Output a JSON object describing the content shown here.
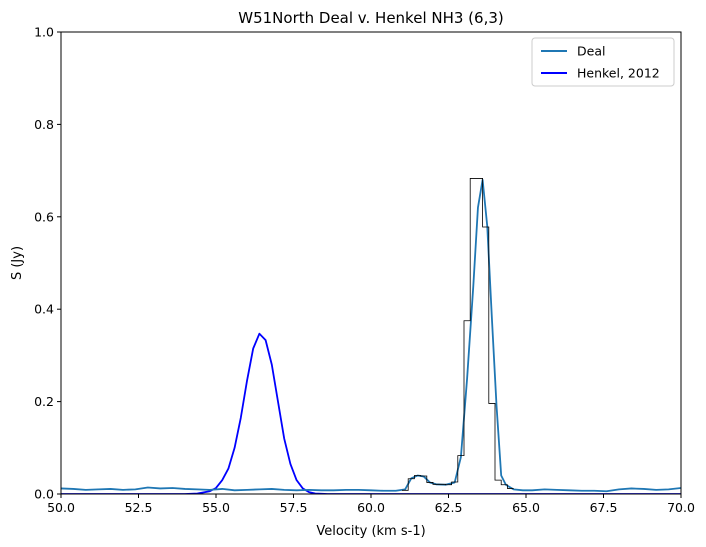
{
  "chart_data": {
    "type": "line",
    "title": "W51North Deal v. Henkel NH3 (6,3)",
    "xlabel": "Velocity (km s-1)",
    "ylabel": "S (Jy)",
    "xlim": [
      50,
      70
    ],
    "ylim": [
      0,
      1
    ],
    "xticks": [
      "50.0",
      "52.5",
      "55.0",
      "57.5",
      "60.0",
      "62.5",
      "65.0",
      "67.5",
      "70.0"
    ],
    "yticks": [
      "0.0",
      "0.2",
      "0.4",
      "0.6",
      "0.8",
      "1.0"
    ],
    "grid": false,
    "legend_position": "top-right",
    "series": [
      {
        "name": "Deal",
        "color": "#1f77b4",
        "style": "line with thin black step outline",
        "x": [
          50.0,
          50.4,
          50.8,
          51.2,
          51.6,
          52.0,
          52.4,
          52.8,
          53.2,
          53.6,
          54.0,
          54.4,
          54.8,
          55.2,
          55.6,
          56.0,
          56.4,
          56.8,
          57.2,
          57.6,
          58.0,
          58.4,
          58.8,
          59.2,
          59.6,
          60.0,
          60.4,
          60.8,
          61.1,
          61.3,
          61.5,
          61.7,
          61.9,
          62.1,
          62.4,
          62.7,
          62.9,
          63.1,
          63.3,
          63.45,
          63.6,
          63.75,
          63.9,
          64.05,
          64.2,
          64.35,
          64.6,
          64.9,
          65.2,
          65.6,
          66.0,
          66.4,
          66.8,
          67.2,
          67.6,
          68.0,
          68.4,
          68.8,
          69.2,
          69.6,
          70.0
        ],
        "y": [
          0.012,
          0.011,
          0.009,
          0.01,
          0.011,
          0.009,
          0.01,
          0.014,
          0.012,
          0.013,
          0.011,
          0.01,
          0.009,
          0.011,
          0.008,
          0.009,
          0.01,
          0.011,
          0.009,
          0.008,
          0.009,
          0.008,
          0.008,
          0.009,
          0.009,
          0.008,
          0.007,
          0.007,
          0.01,
          0.034,
          0.04,
          0.038,
          0.025,
          0.021,
          0.02,
          0.025,
          0.08,
          0.25,
          0.45,
          0.62,
          0.68,
          0.58,
          0.38,
          0.19,
          0.04,
          0.02,
          0.01,
          0.008,
          0.008,
          0.01,
          0.009,
          0.008,
          0.007,
          0.007,
          0.006,
          0.01,
          0.012,
          0.011,
          0.009,
          0.01,
          0.013
        ]
      },
      {
        "name": "Henkel, 2012",
        "color": "#0000ff",
        "x": [
          50.0,
          54.0,
          54.4,
          54.8,
          55.0,
          55.2,
          55.4,
          55.6,
          55.8,
          56.0,
          56.2,
          56.4,
          56.6,
          56.8,
          57.0,
          57.2,
          57.4,
          57.6,
          57.8,
          58.0,
          58.2,
          58.6,
          59.0,
          70.0
        ],
        "y": [
          0.0,
          0.0,
          0.001,
          0.006,
          0.013,
          0.03,
          0.055,
          0.1,
          0.165,
          0.245,
          0.315,
          0.347,
          0.333,
          0.28,
          0.2,
          0.12,
          0.065,
          0.03,
          0.012,
          0.004,
          0.001,
          0.0,
          0.0,
          0.0
        ]
      }
    ],
    "step_outline": {
      "color": "#000000",
      "edges": [
        61.0,
        61.2,
        61.4,
        61.6,
        61.8,
        62.0,
        62.2,
        62.4,
        62.6,
        62.8,
        63.0,
        63.2,
        63.4,
        63.6,
        63.8,
        64.0,
        64.2,
        64.4,
        64.6
      ],
      "values": [
        0.008,
        0.033,
        0.04,
        0.039,
        0.025,
        0.021,
        0.021,
        0.02,
        0.026,
        0.083,
        0.375,
        0.683,
        0.683,
        0.578,
        0.196,
        0.03,
        0.02,
        0.012
      ]
    }
  }
}
